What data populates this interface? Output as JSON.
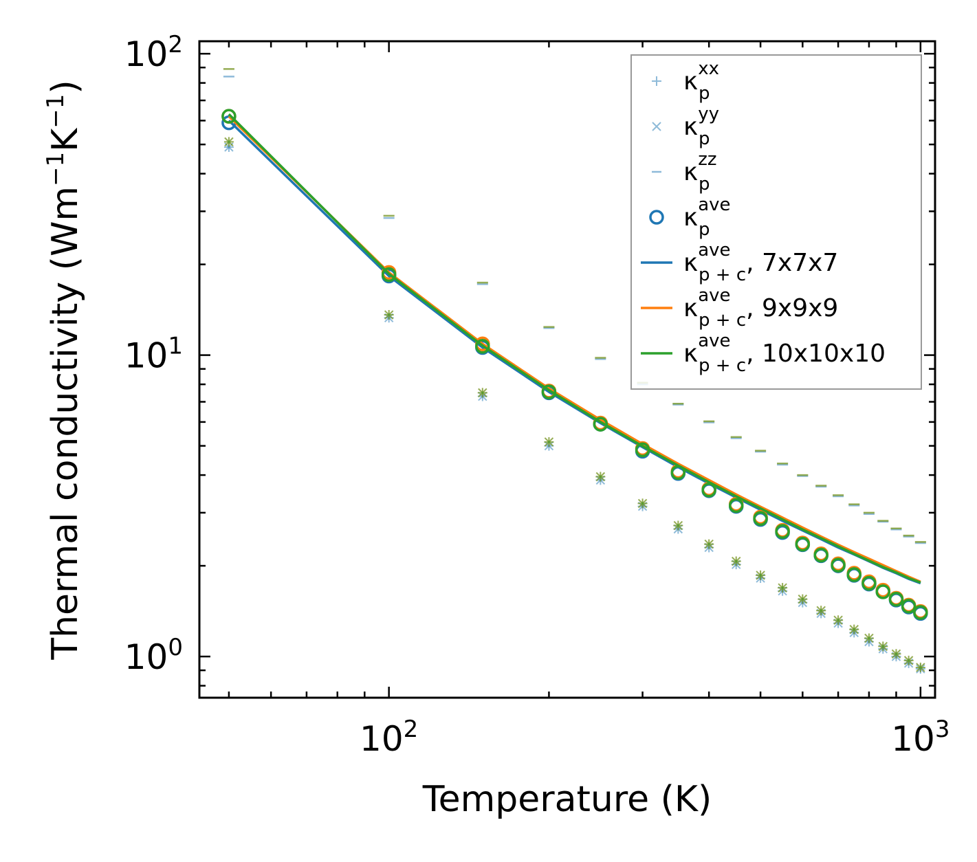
{
  "chart_data": {
    "type": "scatter",
    "xscale": "log",
    "yscale": "log",
    "xlabel": "Temperature (K)",
    "ylabel": "Thermal conductivity (Wm",
    "ylabel_sup1": "−1",
    "ylabel_mid": "K",
    "ylabel_sup2": "−1",
    "ylabel_end": ")",
    "xlim": [
      44,
      1065
    ],
    "ylim": [
      0.73,
      110
    ],
    "xticks": [
      {
        "value": 100,
        "base": "10",
        "exp": "2"
      },
      {
        "value": 1000,
        "base": "10",
        "exp": "3"
      }
    ],
    "yticks": [
      {
        "value": 1,
        "base": "10",
        "exp": "0"
      },
      {
        "value": 10,
        "base": "10",
        "exp": "1"
      },
      {
        "value": 100,
        "base": "10",
        "exp": "2"
      }
    ],
    "legend_position": "upper-right",
    "legend": [
      {
        "symbol": "plus",
        "base": "κ",
        "sup": "xx",
        "sub": "p",
        "extra": ""
      },
      {
        "symbol": "cross",
        "base": "κ",
        "sup": "yy",
        "sub": "p",
        "extra": ""
      },
      {
        "symbol": "dash",
        "base": "κ",
        "sup": "zz",
        "sub": "p",
        "extra": ""
      },
      {
        "symbol": "circle",
        "base": "κ",
        "sup": "ave",
        "sub": "p",
        "extra": ""
      },
      {
        "symbol": "line",
        "color": "#1f77b4",
        "base": "κ",
        "sup": "ave",
        "sub": "p + c",
        "extra": ", 7x7x7"
      },
      {
        "symbol": "line",
        "color": "#ff7f0e",
        "base": "κ",
        "sup": "ave",
        "sub": "p + c",
        "extra": ", 9x9x9"
      },
      {
        "symbol": "line",
        "color": "#2ca02c",
        "base": "κ",
        "sup": "ave",
        "sub": "p + c",
        "extra": ", 10x10x10"
      }
    ],
    "colors": {
      "blue": "#1f77b4",
      "orange": "#ff7f0e",
      "green": "#2ca02c"
    },
    "temperatures": [
      50,
      100,
      150,
      200,
      250,
      300,
      350,
      400,
      450,
      500,
      550,
      600,
      650,
      700,
      750,
      800,
      850,
      900,
      950,
      1000
    ],
    "series": [
      {
        "name": "7x7x7",
        "color": "#1f77b4",
        "kxx": [
          49,
          13.3,
          7.3,
          5.0,
          3.85,
          3.15,
          2.65,
          2.3,
          2.02,
          1.82,
          1.65,
          1.51,
          1.39,
          1.29,
          1.2,
          1.12,
          1.06,
          1.0,
          0.95,
          0.91
        ],
        "kyy": [
          49,
          13.3,
          7.3,
          5.0,
          3.85,
          3.15,
          2.65,
          2.3,
          2.02,
          1.82,
          1.65,
          1.51,
          1.39,
          1.29,
          1.2,
          1.12,
          1.06,
          1.0,
          0.95,
          0.91
        ],
        "kzz": [
          84,
          28.5,
          17.2,
          12.3,
          9.7,
          8.0,
          6.85,
          5.98,
          5.3,
          4.78,
          4.33,
          3.97,
          3.66,
          3.4,
          3.17,
          2.97,
          2.8,
          2.64,
          2.5,
          2.38
        ],
        "kave_p": [
          59,
          18.3,
          10.6,
          7.5,
          5.9,
          4.8,
          4.05,
          3.55,
          3.15,
          2.85,
          2.58,
          2.35,
          2.16,
          2.0,
          1.86,
          1.74,
          1.64,
          1.54,
          1.46,
          1.39
        ],
        "kave_pc": [
          60,
          18.3,
          10.6,
          7.55,
          5.95,
          4.95,
          4.25,
          3.75,
          3.37,
          3.07,
          2.82,
          2.62,
          2.45,
          2.3,
          2.18,
          2.07,
          1.97,
          1.89,
          1.81,
          1.75
        ]
      },
      {
        "name": "9x9x9",
        "color": "#ff7f0e",
        "kxx": [
          51,
          13.6,
          7.5,
          5.15,
          3.95,
          3.22,
          2.72,
          2.36,
          2.07,
          1.86,
          1.69,
          1.55,
          1.42,
          1.32,
          1.23,
          1.15,
          1.08,
          1.02,
          0.97,
          0.92
        ],
        "kyy": [
          51,
          13.6,
          7.5,
          5.15,
          3.95,
          3.22,
          2.72,
          2.36,
          2.07,
          1.86,
          1.69,
          1.55,
          1.42,
          1.32,
          1.23,
          1.15,
          1.08,
          1.02,
          0.97,
          0.92
        ],
        "kzz": [
          89,
          29.0,
          17.4,
          12.4,
          9.8,
          8.1,
          6.9,
          6.03,
          5.35,
          4.82,
          4.37,
          4.0,
          3.69,
          3.43,
          3.2,
          3.0,
          2.82,
          2.66,
          2.52,
          2.4
        ],
        "kave_p": [
          62,
          18.8,
          10.9,
          7.6,
          5.95,
          4.9,
          4.12,
          3.6,
          3.2,
          2.9,
          2.62,
          2.38,
          2.19,
          2.03,
          1.89,
          1.77,
          1.66,
          1.56,
          1.48,
          1.41
        ],
        "kave_pc": [
          62,
          18.8,
          10.9,
          7.75,
          6.1,
          5.07,
          4.36,
          3.85,
          3.45,
          3.14,
          2.89,
          2.68,
          2.5,
          2.35,
          2.22,
          2.11,
          2.01,
          1.92,
          1.84,
          1.77
        ]
      },
      {
        "name": "10x10x10",
        "color": "#2ca02c",
        "kxx": [
          51,
          13.6,
          7.5,
          5.15,
          3.95,
          3.22,
          2.72,
          2.36,
          2.07,
          1.86,
          1.69,
          1.55,
          1.42,
          1.32,
          1.23,
          1.15,
          1.08,
          1.02,
          0.97,
          0.92
        ],
        "kyy": [
          51,
          13.6,
          7.5,
          5.15,
          3.95,
          3.22,
          2.72,
          2.36,
          2.07,
          1.86,
          1.69,
          1.55,
          1.42,
          1.32,
          1.23,
          1.15,
          1.08,
          1.02,
          0.97,
          0.92
        ],
        "kzz": [
          89,
          29.0,
          17.4,
          12.4,
          9.8,
          8.1,
          6.9,
          6.03,
          5.35,
          4.82,
          4.37,
          4.0,
          3.69,
          3.43,
          3.2,
          3.0,
          2.82,
          2.66,
          2.52,
          2.4
        ],
        "kave_p": [
          62,
          18.5,
          10.7,
          7.55,
          5.9,
          4.85,
          4.08,
          3.57,
          3.17,
          2.87,
          2.6,
          2.36,
          2.17,
          2.01,
          1.87,
          1.75,
          1.64,
          1.55,
          1.47,
          1.4
        ],
        "kave_pc": [
          63,
          18.6,
          10.75,
          7.65,
          6.0,
          4.99,
          4.3,
          3.79,
          3.4,
          3.1,
          2.85,
          2.64,
          2.47,
          2.32,
          2.19,
          2.08,
          1.98,
          1.9,
          1.82,
          1.76
        ]
      }
    ]
  }
}
